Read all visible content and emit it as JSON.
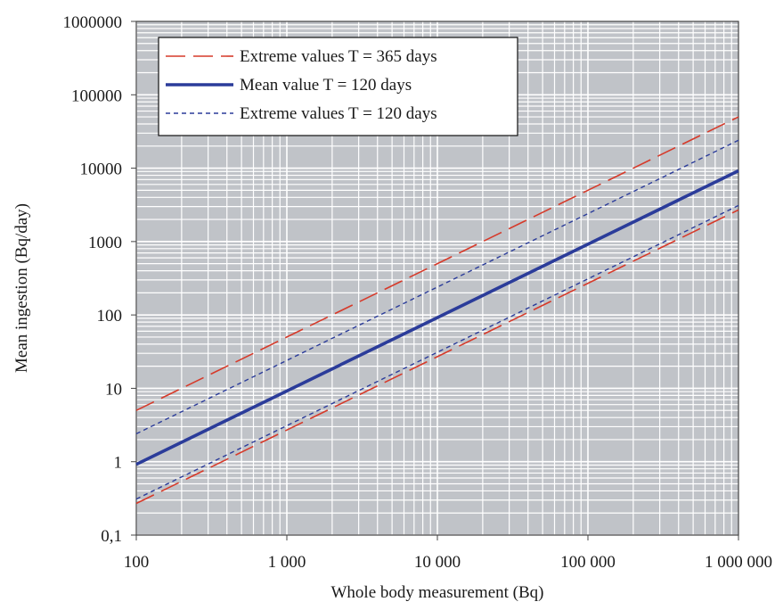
{
  "chart_data": {
    "type": "line",
    "title": "",
    "xlabel": "Whole body measurement (Bq)",
    "ylabel": "Mean ingestion  (Bq/day)",
    "x_scale": "log",
    "y_scale": "log",
    "xlim": [
      100,
      1000000
    ],
    "ylim": [
      0.1,
      1000000
    ],
    "grid": true,
    "legend_position": "top-left",
    "x_ticks": [
      {
        "value": 100,
        "label": "100"
      },
      {
        "value": 1000,
        "label": "1 000"
      },
      {
        "value": 10000,
        "label": "10 000"
      },
      {
        "value": 100000,
        "label": "100 000"
      },
      {
        "value": 1000000,
        "label": "1 000 000"
      }
    ],
    "y_ticks": [
      {
        "value": 0.1,
        "label": "0,1"
      },
      {
        "value": 1,
        "label": "1"
      },
      {
        "value": 10,
        "label": "10"
      },
      {
        "value": 100,
        "label": "100"
      },
      {
        "value": 1000,
        "label": "1000"
      },
      {
        "value": 10000,
        "label": "10000"
      },
      {
        "value": 100000,
        "label": "100000"
      },
      {
        "value": 1000000,
        "label": "1000000"
      }
    ],
    "series": [
      {
        "name": "Extreme values T = 365 days",
        "color": "#d63a2a",
        "style": "long-dash",
        "x": [
          100,
          1000000
        ],
        "y": [
          5,
          50000
        ]
      },
      {
        "name": "Mean value T = 120 days",
        "color": "#2b3c9a",
        "style": "solid-thick",
        "x": [
          100,
          1000000
        ],
        "y": [
          0.92,
          9200
        ]
      },
      {
        "name": "Extreme values T = 120 days",
        "color": "#2b3c9a",
        "style": "short-dash",
        "x": [
          100,
          1000000
        ],
        "y": [
          2.4,
          24000
        ]
      },
      {
        "name": "",
        "color": "#2b3c9a",
        "style": "short-dash",
        "x": [
          100,
          1000000
        ],
        "y": [
          0.31,
          3100
        ]
      },
      {
        "name": "",
        "color": "#d63a2a",
        "style": "long-dash",
        "x": [
          100,
          1000000
        ],
        "y": [
          0.27,
          2700
        ]
      }
    ],
    "colors": {
      "plot_background": "#c0c3c8",
      "gridline": "#ffffff"
    }
  }
}
